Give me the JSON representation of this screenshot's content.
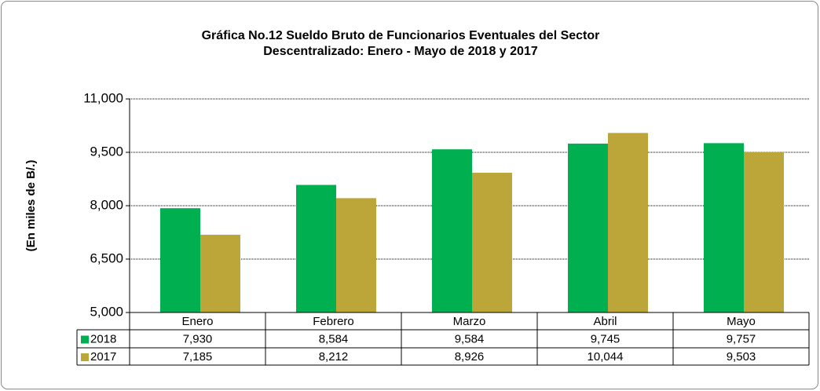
{
  "chart_data": {
    "type": "bar",
    "title": "Gráfica No.12 Sueldo Bruto de Funcionarios Eventuales del Sector Descentralizado: Enero - Mayo de 2018 y 2017",
    "y_axis_label": "(En miles de B/.)",
    "categories": [
      "Enero",
      "Febrero",
      "Marzo",
      "Abril",
      "Mayo"
    ],
    "series": [
      {
        "name": "2018",
        "color": "#00b050",
        "values": [
          7930,
          8584,
          9584,
          9745,
          9757
        ],
        "value_labels": [
          "7,930",
          "8,584",
          "9,584",
          "9,745",
          "9,757"
        ]
      },
      {
        "name": "2017",
        "color": "#bca63a",
        "values": [
          7185,
          8212,
          8926,
          10044,
          9503
        ],
        "value_labels": [
          "7,185",
          "8,212",
          "8,926",
          "10,044",
          "9,503"
        ]
      }
    ],
    "ylim": [
      5000,
      11000
    ],
    "yticks": [
      {
        "value": 5000,
        "label": "5,000"
      },
      {
        "value": 6500,
        "label": "6,500"
      },
      {
        "value": 8000,
        "label": "8,000"
      },
      {
        "value": 9500,
        "label": "9,500"
      },
      {
        "value": 11000,
        "label": "11,000"
      }
    ],
    "grid": true
  }
}
